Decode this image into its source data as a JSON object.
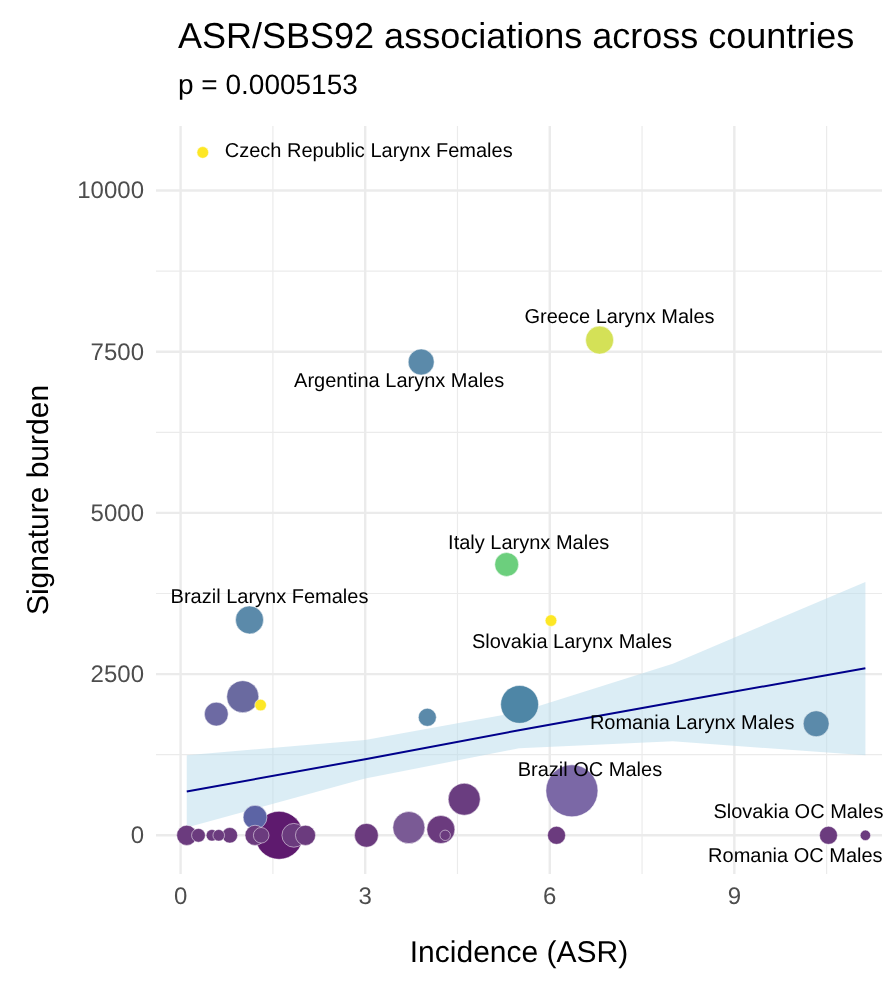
{
  "chart_data": {
    "type": "bubble",
    "title": "ASR/SBS92 associations across countries",
    "subtitle": "p = 0.0005153",
    "xlabel": "Incidence (ASR)",
    "ylabel": "Signature burden",
    "xlim": [
      -0.4,
      11.4
    ],
    "ylim": [
      -600,
      11000
    ],
    "xticks": [
      {
        "value": 0,
        "label": "0"
      },
      {
        "value": 1.5,
        "label": null
      },
      {
        "value": 3,
        "label": "3"
      },
      {
        "value": 4.5,
        "label": null
      },
      {
        "value": 6,
        "label": "6"
      },
      {
        "value": 7.5,
        "label": null
      },
      {
        "value": 9,
        "label": "9"
      },
      {
        "value": 10.5,
        "label": null
      }
    ],
    "yticks": [
      {
        "value": 0,
        "label": "0"
      },
      {
        "value": 1250,
        "label": null
      },
      {
        "value": 2500,
        "label": "2500"
      },
      {
        "value": 3750,
        "label": null
      },
      {
        "value": 5000,
        "label": "5000"
      },
      {
        "value": 6250,
        "label": null
      },
      {
        "value": 7500,
        "label": "7500"
      },
      {
        "value": 8750,
        "label": null
      },
      {
        "value": 10000,
        "label": "10000"
      }
    ],
    "grid": true,
    "series": [
      {
        "type": "line",
        "color": "#00008b",
        "x": [
          0.1,
          3,
          5.5,
          8,
          11.13
        ],
        "values": [
          680,
          1180,
          1630,
          2060,
          2590
        ],
        "lower": [
          120,
          880,
          1350,
          1460,
          1240
        ],
        "upper": [
          1240,
          1480,
          1910,
          2660,
          3930
        ]
      },
      {
        "x": [
          0.36,
          6.81,
          3.91,
          5.3,
          1.12,
          6.02,
          0.58,
          1.01,
          1.3,
          4.01,
          5.51,
          10.33,
          6.36,
          1.21,
          0.1,
          0.29,
          0.51,
          0.62,
          0.8,
          1.21,
          1.31,
          1.6,
          1.84,
          2.03,
          3.02,
          3.71,
          4.23,
          4.3,
          4.61,
          6.11,
          10.53,
          11.13
        ],
        "values": [
          10590,
          7680,
          7340,
          4200,
          3340,
          3330,
          1880,
          2150,
          2020,
          1830,
          2030,
          1730,
          690,
          280,
          0,
          0,
          0,
          0,
          0,
          0,
          0,
          0,
          0,
          0,
          0,
          120,
          90,
          0,
          560,
          0,
          0,
          0
        ],
        "sizes": [
          0.05,
          0.29,
          0.25,
          0.21,
          0.29,
          0.05,
          0.21,
          0.38,
          0.05,
          0.12,
          0.53,
          0.25,
          1,
          0.21,
          0.15,
          0.07,
          0.05,
          0.05,
          0.09,
          0.15,
          0.09,
          0.85,
          0.21,
          0.15,
          0.21,
          0.38,
          0.29,
          0.04,
          0.38,
          0.12,
          0.12,
          0.04
        ],
        "colors": [
          "#fde725",
          "#d4e157",
          "#5b8aaa",
          "#6ccf7d",
          "#5b8aaa",
          "#fde725",
          "#6d6aa3",
          "#6a6aa0",
          "#fde725",
          "#5b8aaa",
          "#4e86a6",
          "#5b8aaa",
          "#7b68a6",
          "#5c64a5",
          "#6b3b7e",
          "#6b3b7e",
          "#6b3b7e",
          "#6b3b7e",
          "#6b3b7e",
          "#6b3b7e",
          "#6b3b7e",
          "#5e1a6e",
          "#6b3b7e",
          "#6b3b7e",
          "#6b3b7e",
          "#7a5a95",
          "#6b3b7e",
          "#6b3b7e",
          "#6a3d80",
          "#6b3b7e",
          "#6b3b7e",
          "#6b3b7e"
        ]
      }
    ],
    "annotations": [
      {
        "text": "Czech Republic Larynx Females",
        "x": 0.36,
        "y": 10590
      },
      {
        "text": "Greece Larynx Males",
        "x": 6.81,
        "y": 7680
      },
      {
        "text": "Argentina Larynx Males",
        "x": 3.91,
        "y": 7340
      },
      {
        "text": "Italy Larynx Males",
        "x": 5.3,
        "y": 4200
      },
      {
        "text": "Brazil Larynx Females",
        "x": 1.12,
        "y": 3340
      },
      {
        "text": "Slovakia Larynx Males",
        "x": 6.02,
        "y": 3330
      },
      {
        "text": "Romania Larynx Males",
        "x": 10.33,
        "y": 1730
      },
      {
        "text": "Brazil OC Males",
        "x": 6.36,
        "y": 690
      },
      {
        "text": "Slovakia OC Males",
        "x": 10.53,
        "y": 0
      },
      {
        "text": "Romania OC Males",
        "x": 11.13,
        "y": 0
      }
    ]
  }
}
